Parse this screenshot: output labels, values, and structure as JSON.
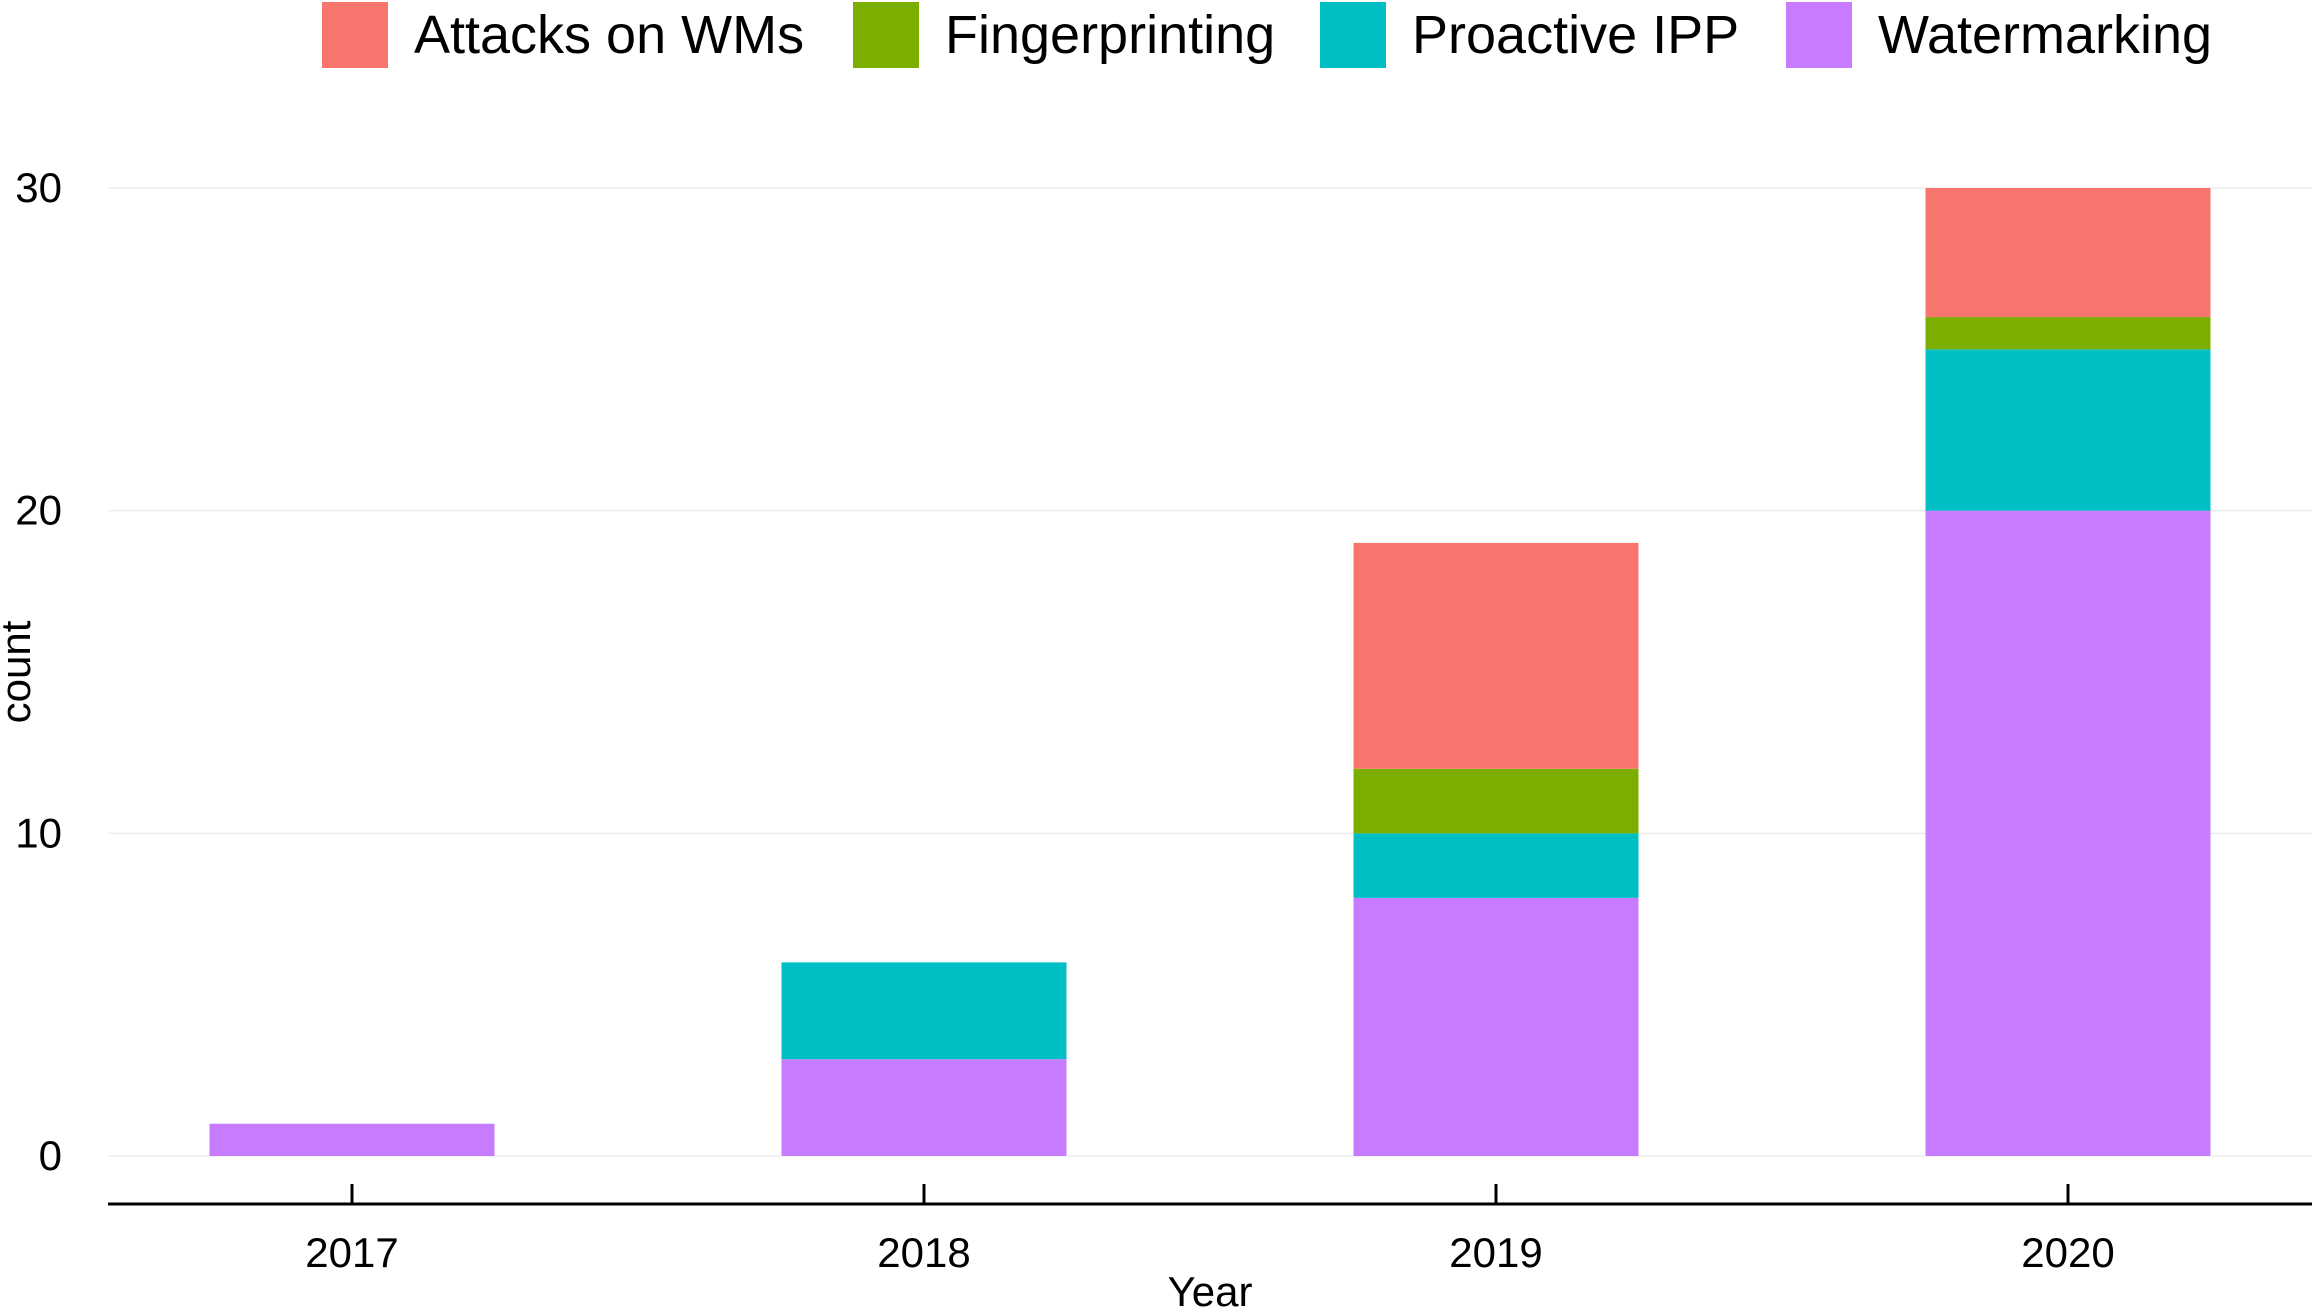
{
  "chart_data": {
    "type": "bar",
    "stacked": true,
    "title": "",
    "xlabel": "Year",
    "ylabel": "count",
    "categories": [
      "2017",
      "2018",
      "2019",
      "2020"
    ],
    "ylim": [
      0,
      30
    ],
    "yticks": [
      0,
      10,
      20,
      30
    ],
    "grid": "horizontal major lines only",
    "legend_position": "top",
    "series": [
      {
        "name": "Watermarking",
        "color": "#C77CFF",
        "values": [
          1,
          3,
          8,
          20
        ]
      },
      {
        "name": "Proactive IPP",
        "color": "#00BFC4",
        "values": [
          0,
          3,
          2,
          5
        ]
      },
      {
        "name": "Fingerprinting",
        "color": "#7CAE00",
        "values": [
          0,
          0,
          2,
          1
        ]
      },
      {
        "name": "Attacks on WMs",
        "color": "#F8766D",
        "values": [
          0,
          0,
          7,
          4
        ]
      }
    ],
    "legend_order": [
      "Attacks on WMs",
      "Fingerprinting",
      "Proactive IPP",
      "Watermarking"
    ]
  }
}
